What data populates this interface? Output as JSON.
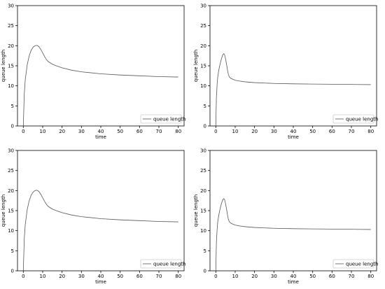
{
  "colors": {
    "line": "#555555",
    "frame": "#000000",
    "legend_border": "#cccccc"
  },
  "chart_data": [
    {
      "type": "line",
      "xlabel": "time",
      "ylabel": "queue length",
      "xlim": [
        -3,
        83
      ],
      "ylim": [
        0,
        30
      ],
      "xticks": [
        0,
        10,
        20,
        30,
        40,
        50,
        60,
        70,
        80
      ],
      "yticks": [
        0,
        5,
        10,
        15,
        20,
        25,
        30
      ],
      "legend": "lower right",
      "grid": false,
      "series": [
        {
          "name": "queue length",
          "x": [
            0,
            0.5,
            1,
            2,
            3,
            4,
            5,
            6,
            7,
            8,
            9,
            10,
            11,
            12,
            13,
            14,
            15,
            17,
            20,
            25,
            30,
            40,
            50,
            60,
            70,
            80
          ],
          "y": [
            0,
            8,
            11.5,
            15.2,
            17.4,
            18.8,
            19.6,
            20.0,
            20.1,
            19.8,
            19.1,
            18.2,
            17.3,
            16.5,
            16.0,
            15.7,
            15.4,
            15.0,
            14.5,
            13.9,
            13.5,
            13.0,
            12.7,
            12.5,
            12.3,
            12.2
          ]
        }
      ]
    },
    {
      "type": "line",
      "xlabel": "time",
      "ylabel": "queue length",
      "xlim": [
        -3,
        83
      ],
      "ylim": [
        0,
        30
      ],
      "xticks": [
        0,
        10,
        20,
        30,
        40,
        50,
        60,
        70,
        80
      ],
      "yticks": [
        0,
        5,
        10,
        15,
        20,
        25,
        30
      ],
      "legend": "lower right",
      "grid": false,
      "series": [
        {
          "name": "queue length",
          "x": [
            0,
            0.3,
            0.7,
            1,
            1.5,
            2,
            2.5,
            3,
            3.5,
            4,
            4.5,
            5,
            5.5,
            6,
            6.5,
            7,
            8,
            9,
            10,
            12,
            15,
            20,
            30,
            40,
            50,
            60,
            70,
            80
          ],
          "y": [
            0,
            7,
            10.5,
            12.2,
            13.8,
            15.0,
            16.0,
            16.9,
            17.6,
            18.0,
            17.8,
            16.8,
            15.5,
            14.0,
            12.8,
            12.2,
            11.8,
            11.6,
            11.4,
            11.2,
            11.0,
            10.8,
            10.6,
            10.5,
            10.45,
            10.4,
            10.35,
            10.3
          ]
        }
      ]
    },
    {
      "type": "line",
      "xlabel": "time",
      "ylabel": "queue length",
      "xlim": [
        -3,
        83
      ],
      "ylim": [
        0,
        30
      ],
      "xticks": [
        0,
        10,
        20,
        30,
        40,
        50,
        60,
        70,
        80
      ],
      "yticks": [
        0,
        5,
        10,
        15,
        20,
        25,
        30
      ],
      "legend": "lower right",
      "grid": false,
      "series": [
        {
          "name": "queue length",
          "x": [
            0,
            0.5,
            1,
            2,
            3,
            4,
            5,
            6,
            7,
            8,
            9,
            10,
            11,
            12,
            13,
            14,
            15,
            17,
            20,
            25,
            30,
            40,
            50,
            60,
            70,
            80
          ],
          "y": [
            0,
            8,
            11.5,
            15.2,
            17.4,
            18.8,
            19.6,
            20.0,
            20.1,
            19.8,
            19.1,
            18.2,
            17.3,
            16.5,
            16.0,
            15.7,
            15.4,
            15.0,
            14.5,
            13.9,
            13.5,
            13.0,
            12.7,
            12.5,
            12.3,
            12.2
          ]
        }
      ]
    },
    {
      "type": "line",
      "xlabel": "time",
      "ylabel": "queue length",
      "xlim": [
        -3,
        83
      ],
      "ylim": [
        0,
        30
      ],
      "xticks": [
        0,
        10,
        20,
        30,
        40,
        50,
        60,
        70,
        80
      ],
      "yticks": [
        0,
        5,
        10,
        15,
        20,
        25,
        30
      ],
      "legend": "lower right",
      "grid": false,
      "series": [
        {
          "name": "queue length",
          "x": [
            0,
            0.3,
            0.7,
            1,
            1.5,
            2,
            2.5,
            3,
            3.5,
            4,
            4.5,
            5,
            5.5,
            6,
            6.5,
            7,
            8,
            9,
            10,
            12,
            15,
            20,
            30,
            40,
            50,
            60,
            70,
            80
          ],
          "y": [
            0,
            7,
            10.5,
            12.2,
            13.8,
            15.0,
            16.0,
            16.9,
            17.6,
            18.0,
            17.8,
            16.8,
            15.5,
            14.0,
            12.8,
            12.2,
            11.8,
            11.6,
            11.4,
            11.2,
            11.0,
            10.8,
            10.6,
            10.5,
            10.45,
            10.4,
            10.35,
            10.3
          ]
        }
      ]
    }
  ]
}
